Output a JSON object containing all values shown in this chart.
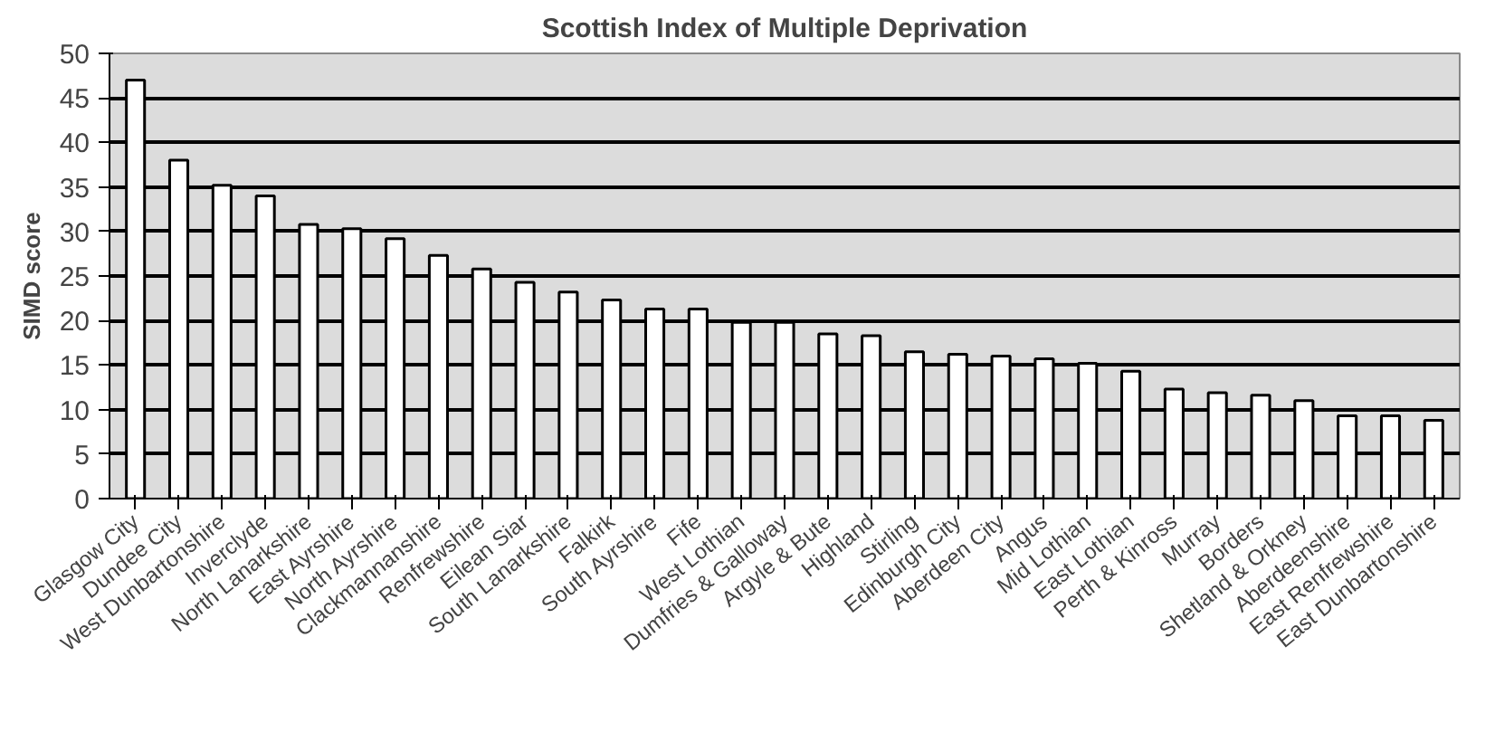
{
  "chart_data": {
    "type": "bar",
    "title": "Scottish Index of Multiple Deprivation",
    "ylabel": "SIMD score",
    "categories": [
      "Glasgow City",
      "Dundee City",
      "West Dunbartonshire",
      "Inverclyde",
      "North Lanarkshire",
      "East Ayrshire",
      "North Ayrshire",
      "Clackmannanshire",
      "Renfrewshire",
      "Eilean Siar",
      "South Lanarkshire",
      "Falkirk",
      "South Ayrshire",
      "Fife",
      "West Lothian",
      "Dumfries & Galloway",
      "Argyle & Bute",
      "Highland",
      "Stirling",
      "Edinburgh City",
      "Aberdeen City",
      "Angus",
      "Mid Lothian",
      "East Lothian",
      "Perth & Kinross",
      "Murray",
      "Borders",
      "Shetland & Orkney",
      "Aberdeenshire",
      "East Renfrewshire",
      "East Dunbartonshire"
    ],
    "values": [
      47,
      38,
      35.2,
      34,
      30.8,
      30.3,
      29.2,
      27.3,
      25.8,
      24.3,
      23.2,
      22.3,
      21.3,
      21.3,
      19.8,
      19.8,
      18.5,
      18.3,
      16.5,
      16.2,
      16,
      15.7,
      15.2,
      14.3,
      12.3,
      11.9,
      11.6,
      11,
      9.3,
      9.3,
      8.8
    ],
    "color": "#ffffff",
    "ylim": [
      0,
      50
    ],
    "yticks": [
      0,
      5,
      10,
      15,
      20,
      25,
      30,
      35,
      40,
      45,
      50
    ],
    "grid": "y"
  }
}
